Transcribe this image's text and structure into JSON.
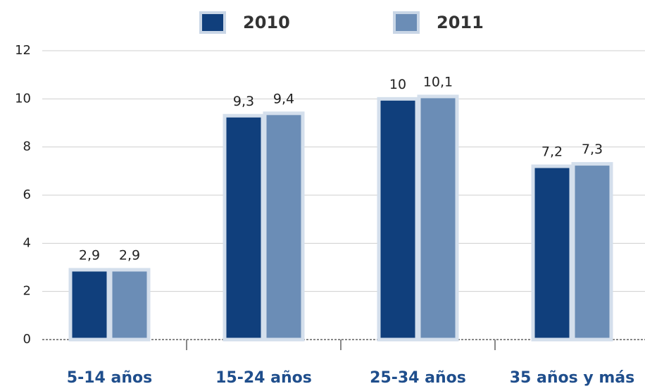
{
  "chart_data": {
    "type": "bar",
    "categories": [
      "5-14 años",
      "15-24 años",
      "25-34 años",
      "35 años y más"
    ],
    "series": [
      {
        "name": "2010",
        "color": "#103f7c",
        "values": [
          2.9,
          9.3,
          10,
          7.2
        ],
        "value_labels": [
          "2,9",
          "9,3",
          "10",
          "7,2"
        ]
      },
      {
        "name": "2011",
        "color": "#6b8db6",
        "values": [
          2.9,
          9.4,
          10.1,
          7.3
        ],
        "value_labels": [
          "2,9",
          "9,4",
          "10,1",
          "7,3"
        ]
      }
    ],
    "ylim": [
      0,
      12
    ],
    "yticks": [
      0,
      2,
      4,
      6,
      8,
      10,
      12
    ],
    "grid": true
  }
}
